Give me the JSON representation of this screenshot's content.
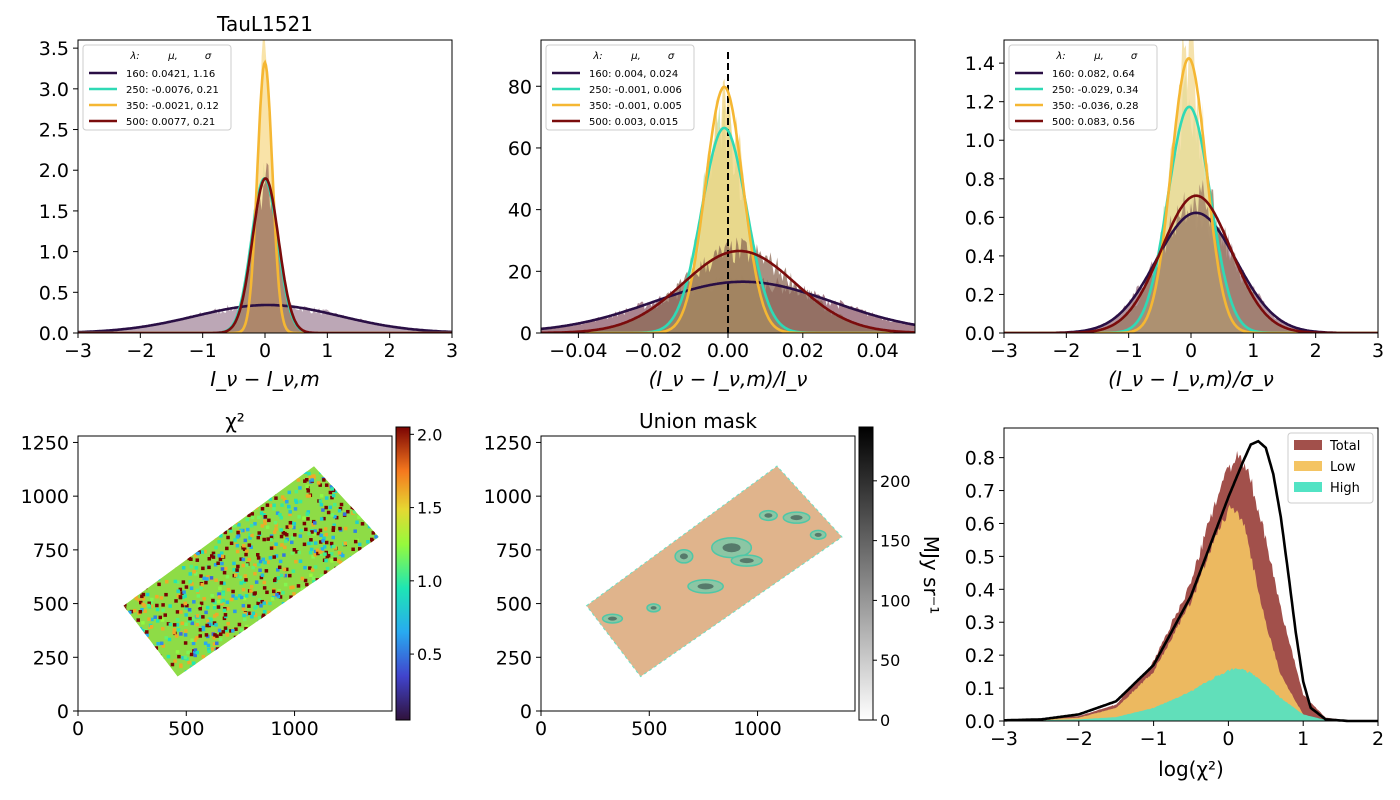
{
  "chart_data": [
    {
      "type": "area",
      "title": "TauL1521",
      "xlabel": "I_ν − I_ν,m",
      "ylabel": "",
      "xlim": [
        -3,
        3
      ],
      "ylim": [
        0,
        3.6
      ],
      "xticks": [
        "−3",
        "−2",
        "−1",
        "0",
        "1",
        "2",
        "3"
      ],
      "yticks": [
        "0.0",
        "0.5",
        "1.0",
        "1.5",
        "2.0",
        "2.5",
        "3.0",
        "3.5"
      ],
      "legend_header": [
        "λ:",
        "μ,",
        "σ"
      ],
      "legend_position": "upper-left",
      "series": [
        {
          "name": "160: 0.0421,  1.16",
          "mu": 0.0421,
          "sigma": 1.16,
          "color": "#2a0f45",
          "fill": "#a58a9e"
        },
        {
          "name": "250: -0.0076,  0.21",
          "mu": -0.0076,
          "sigma": 0.21,
          "color": "#2fd9b5",
          "fill": "#b9e8c8"
        },
        {
          "name": "350: -0.0021,  0.12",
          "mu": -0.0021,
          "sigma": 0.12,
          "color": "#f5b733",
          "fill": "#f7d98b"
        },
        {
          "name": "500: 0.0077,  0.21",
          "mu": 0.0077,
          "sigma": 0.21,
          "color": "#7a0c0c",
          "fill": "#9a6b5c"
        }
      ]
    },
    {
      "type": "area",
      "title": "",
      "xlabel": "(I_ν − I_ν,m)/I_ν",
      "ylabel": "",
      "xlim": [
        -0.05,
        0.05
      ],
      "ylim": [
        0,
        95
      ],
      "xticks": [
        "−0.04",
        "−0.02",
        "0.00",
        "0.02",
        "0.04"
      ],
      "yticks": [
        "0",
        "20",
        "40",
        "60",
        "80"
      ],
      "vline": 0,
      "legend_header": [
        "λ:",
        "μ,",
        "σ"
      ],
      "legend_position": "upper-left",
      "series": [
        {
          "name": "160: 0.004,  0.024",
          "mu": 0.004,
          "sigma": 0.024,
          "color": "#2a0f45",
          "fill": "#8e5a6a"
        },
        {
          "name": "250: -0.001,  0.006",
          "mu": -0.001,
          "sigma": 0.006,
          "color": "#2fd9b5",
          "fill": "#b9e0a8"
        },
        {
          "name": "350: -0.001,  0.005",
          "mu": -0.001,
          "sigma": 0.005,
          "color": "#f5b733",
          "fill": "#f1d37b"
        },
        {
          "name": "500: 0.003,  0.015",
          "mu": 0.003,
          "sigma": 0.015,
          "color": "#7a0c0c",
          "fill": "#8c6a56"
        }
      ]
    },
    {
      "type": "area",
      "title": "",
      "xlabel": "(I_ν − I_ν,m)/σ_ν",
      "ylabel": "",
      "xlim": [
        -3,
        3
      ],
      "ylim": [
        0,
        1.52
      ],
      "xticks": [
        "−3",
        "−2",
        "−1",
        "0",
        "1",
        "2",
        "3"
      ],
      "yticks": [
        "0.0",
        "0.2",
        "0.4",
        "0.6",
        "0.8",
        "1.0",
        "1.2",
        "1.4"
      ],
      "legend_header": [
        "λ:",
        "μ,",
        "σ"
      ],
      "legend_position": "upper-left",
      "series": [
        {
          "name": "160: 0.082,  0.64",
          "mu": 0.082,
          "sigma": 0.64,
          "color": "#2a0f45",
          "fill": "#9a6f7e"
        },
        {
          "name": "250: -0.029,  0.34",
          "mu": -0.029,
          "sigma": 0.34,
          "color": "#2fd9b5",
          "fill": "#bfe3b0"
        },
        {
          "name": "350: -0.036,  0.28",
          "mu": -0.036,
          "sigma": 0.28,
          "color": "#f5b733",
          "fill": "#f2d890"
        },
        {
          "name": "500: 0.083,  0.56",
          "mu": 0.083,
          "sigma": 0.56,
          "color": "#7a0c0c",
          "fill": "#9b7a64"
        }
      ]
    },
    {
      "type": "heatmap",
      "title": "χ²",
      "xlabel": "",
      "ylabel": "",
      "xlim": [
        0,
        1450
      ],
      "ylim": [
        0,
        1280
      ],
      "xticks": [
        "0",
        "500",
        "1000"
      ],
      "yticks": [
        "0",
        "250",
        "500",
        "750",
        "1000",
        "1250"
      ],
      "colorbar_ticks": [
        "0.5",
        "1.0",
        "1.5",
        "2.0"
      ],
      "colorbar_range": [
        0.05,
        2.05
      ],
      "region_corners": [
        [
          210,
          490
        ],
        [
          1090,
          1140
        ],
        [
          1390,
          810
        ],
        [
          460,
          160
        ]
      ]
    },
    {
      "type": "heatmap",
      "title": "Union mask",
      "xlabel": "",
      "ylabel": "",
      "xlim": [
        0,
        1450
      ],
      "ylim": [
        0,
        1280
      ],
      "xticks": [
        "0",
        "500",
        "1000"
      ],
      "yticks": [
        "0",
        "250",
        "500",
        "750",
        "1000",
        "1250"
      ],
      "colorbar_ticks": [
        "0",
        "50",
        "100",
        "150",
        "200"
      ],
      "colorbar_range": [
        0,
        245
      ],
      "colorbar_label": "MJy sr⁻¹",
      "region_corners": [
        [
          210,
          490
        ],
        [
          1090,
          1140
        ],
        [
          1390,
          810
        ],
        [
          460,
          160
        ]
      ]
    },
    {
      "type": "area",
      "title": "",
      "xlabel": "log(χ²)",
      "ylabel": "",
      "xlim": [
        -3,
        2
      ],
      "ylim": [
        0,
        0.89
      ],
      "xticks": [
        "−3",
        "−2",
        "−1",
        "0",
        "1",
        "2"
      ],
      "yticks": [
        "0.0",
        "0.1",
        "0.2",
        "0.3",
        "0.4",
        "0.5",
        "0.6",
        "0.7",
        "0.8"
      ],
      "legend_position": "upper-right",
      "series": [
        {
          "name": "Total",
          "color": "#a2504b",
          "x": [
            -3,
            -2,
            -1.5,
            -1,
            -0.5,
            -0.2,
            0,
            0.1,
            0.2,
            0.3,
            0.5,
            0.7,
            1,
            1.3,
            1.6,
            2
          ],
          "y": [
            0,
            0.015,
            0.05,
            0.18,
            0.42,
            0.65,
            0.77,
            0.8,
            0.78,
            0.73,
            0.55,
            0.34,
            0.08,
            0.01,
            0.002,
            0
          ]
        },
        {
          "name": "Low",
          "color": "#f4c463",
          "x": [
            -3,
            -2,
            -1.5,
            -1,
            -0.5,
            -0.2,
            0,
            0.1,
            0.2,
            0.3,
            0.5,
            0.7,
            1,
            1.3,
            1.6,
            2
          ],
          "y": [
            0,
            0.01,
            0.04,
            0.15,
            0.36,
            0.55,
            0.64,
            0.65,
            0.6,
            0.5,
            0.3,
            0.14,
            0.02,
            0,
            0,
            0
          ]
        },
        {
          "name": "High",
          "color": "#52e3c4",
          "x": [
            -3,
            -2,
            -1.5,
            -1,
            -0.5,
            -0.2,
            0,
            0.1,
            0.2,
            0.3,
            0.5,
            0.7,
            1,
            1.3,
            1.6,
            2
          ],
          "y": [
            0,
            0.005,
            0.012,
            0.04,
            0.09,
            0.13,
            0.155,
            0.16,
            0.155,
            0.145,
            0.11,
            0.07,
            0.02,
            0.003,
            0,
            0
          ]
        },
        {
          "name": "",
          "color": "#000000",
          "kind": "line",
          "x": [
            -3,
            -2.5,
            -2,
            -1.5,
            -1,
            -0.5,
            0,
            0.2,
            0.3,
            0.4,
            0.5,
            0.6,
            0.7,
            0.8,
            0.9,
            1.0,
            1.1,
            1.3,
            1.6,
            2
          ],
          "y": [
            0.002,
            0.005,
            0.02,
            0.06,
            0.17,
            0.38,
            0.68,
            0.79,
            0.84,
            0.85,
            0.83,
            0.75,
            0.62,
            0.45,
            0.27,
            0.12,
            0.04,
            0.005,
            0,
            0
          ]
        }
      ]
    }
  ]
}
